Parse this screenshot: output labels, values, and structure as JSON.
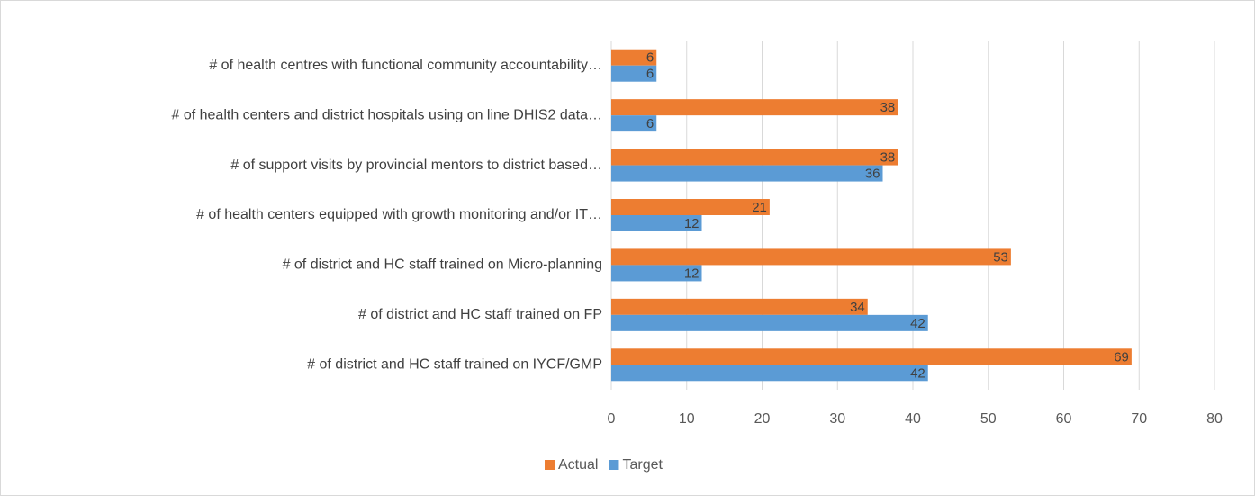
{
  "chart_data": {
    "type": "bar",
    "orientation": "horizontal",
    "categories": [
      "# of health centres with functional community accountability…",
      "# of health centers and district hospitals using on line DHIS2 data…",
      "# of support visits by provincial mentors to district based…",
      "# of health centers equipped with growth monitoring and/or IT…",
      "# of district and HC staff trained on Micro-planning",
      "# of district and HC staff trained on FP",
      "# of district and HC staff trained on IYCF/GMP"
    ],
    "series": [
      {
        "name": "Actual",
        "color": "#ed7d31",
        "values": [
          6,
          38,
          38,
          21,
          53,
          34,
          69
        ]
      },
      {
        "name": "Target",
        "color": "#5b9bd5",
        "values": [
          6,
          6,
          36,
          12,
          12,
          42,
          42
        ]
      }
    ],
    "xlim": [
      0,
      80
    ],
    "xticks": [
      0,
      10,
      20,
      30,
      40,
      50,
      60,
      70,
      80
    ],
    "grid": true,
    "legend": "bottom"
  }
}
